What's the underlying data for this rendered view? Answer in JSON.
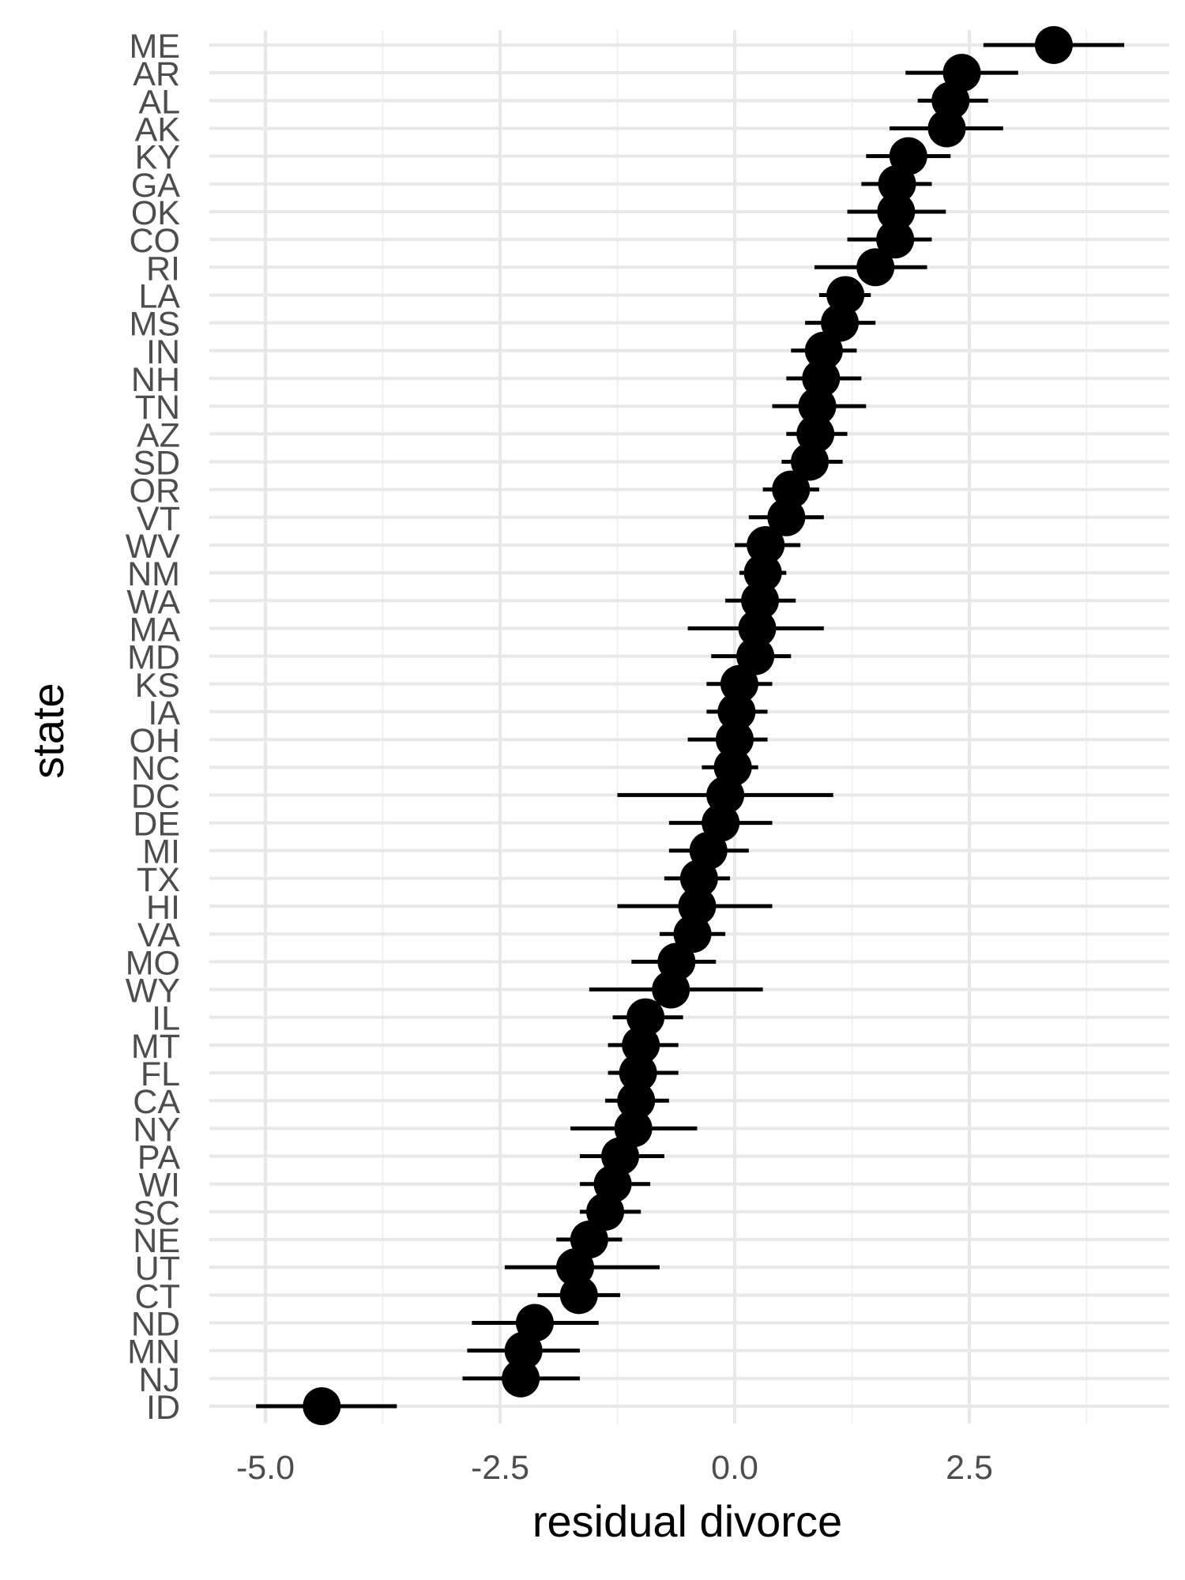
{
  "chart_data": {
    "type": "scatter",
    "xlabel": "residual divorce",
    "ylabel": "state",
    "xlim": [
      -5.3,
      4.6
    ],
    "x_ticks": [
      -5.0,
      -2.5,
      0.0,
      2.5
    ],
    "x_tick_labels": [
      "-5.0",
      "-2.5",
      "0.0",
      "2.5"
    ],
    "grid": true,
    "states": [
      "ME",
      "AR",
      "AL",
      "AK",
      "KY",
      "GA",
      "OK",
      "CO",
      "RI",
      "LA",
      "MS",
      "IN",
      "NH",
      "TN",
      "AZ",
      "SD",
      "OR",
      "VT",
      "WV",
      "NM",
      "WA",
      "MA",
      "MD",
      "KS",
      "IA",
      "OH",
      "NC",
      "DC",
      "DE",
      "MI",
      "TX",
      "HI",
      "VA",
      "MO",
      "WY",
      "IL",
      "MT",
      "FL",
      "CA",
      "NY",
      "PA",
      "WI",
      "SC",
      "NE",
      "UT",
      "CT",
      "ND",
      "MN",
      "NJ",
      "ID"
    ],
    "estimate": [
      3.4,
      2.42,
      2.3,
      2.26,
      1.85,
      1.73,
      1.72,
      1.71,
      1.5,
      1.18,
      1.12,
      0.95,
      0.92,
      0.88,
      0.86,
      0.8,
      0.6,
      0.55,
      0.33,
      0.3,
      0.27,
      0.24,
      0.22,
      0.05,
      0.02,
      0.0,
      -0.02,
      -0.1,
      -0.15,
      -0.28,
      -0.38,
      -0.4,
      -0.45,
      -0.62,
      -0.68,
      -0.95,
      -1.0,
      -1.03,
      -1.05,
      -1.08,
      -1.22,
      -1.3,
      -1.38,
      -1.55,
      -1.7,
      -1.66,
      -2.13,
      -2.25,
      -2.28,
      -4.4
    ],
    "lower": [
      2.65,
      1.82,
      1.95,
      1.65,
      1.4,
      1.35,
      1.2,
      1.2,
      0.85,
      0.9,
      0.75,
      0.6,
      0.55,
      0.4,
      0.55,
      0.5,
      0.3,
      0.15,
      0.0,
      0.05,
      -0.1,
      -0.5,
      -0.25,
      -0.3,
      -0.3,
      -0.5,
      -0.35,
      -1.25,
      -0.7,
      -0.7,
      -0.75,
      -1.25,
      -0.8,
      -1.1,
      -1.55,
      -1.3,
      -1.35,
      -1.35,
      -1.38,
      -1.75,
      -1.65,
      -1.65,
      -1.65,
      -1.9,
      -2.45,
      -2.1,
      -2.8,
      -2.85,
      -2.9,
      -5.1
    ],
    "upper": [
      4.15,
      3.02,
      2.7,
      2.86,
      2.3,
      2.1,
      2.25,
      2.1,
      2.05,
      1.45,
      1.5,
      1.3,
      1.35,
      1.4,
      1.2,
      1.15,
      0.9,
      0.95,
      0.7,
      0.55,
      0.65,
      0.95,
      0.6,
      0.4,
      0.35,
      0.35,
      0.25,
      1.05,
      0.4,
      0.15,
      -0.05,
      0.4,
      -0.1,
      -0.2,
      0.3,
      -0.55,
      -0.6,
      -0.6,
      -0.7,
      -0.4,
      -0.75,
      -0.9,
      -1.0,
      -1.2,
      -0.8,
      -1.22,
      -1.45,
      -1.65,
      -1.65,
      -3.6
    ]
  }
}
